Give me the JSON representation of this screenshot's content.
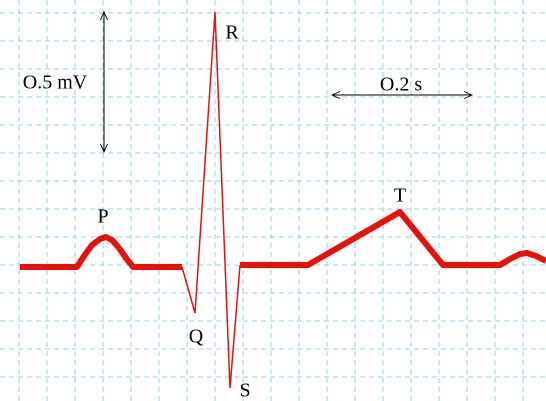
{
  "waves": {
    "p": "P",
    "q": "Q",
    "r": "R",
    "s": "S",
    "t": "T"
  },
  "scale": {
    "voltage": "O.5 mV",
    "time": "O.2 s"
  }
}
